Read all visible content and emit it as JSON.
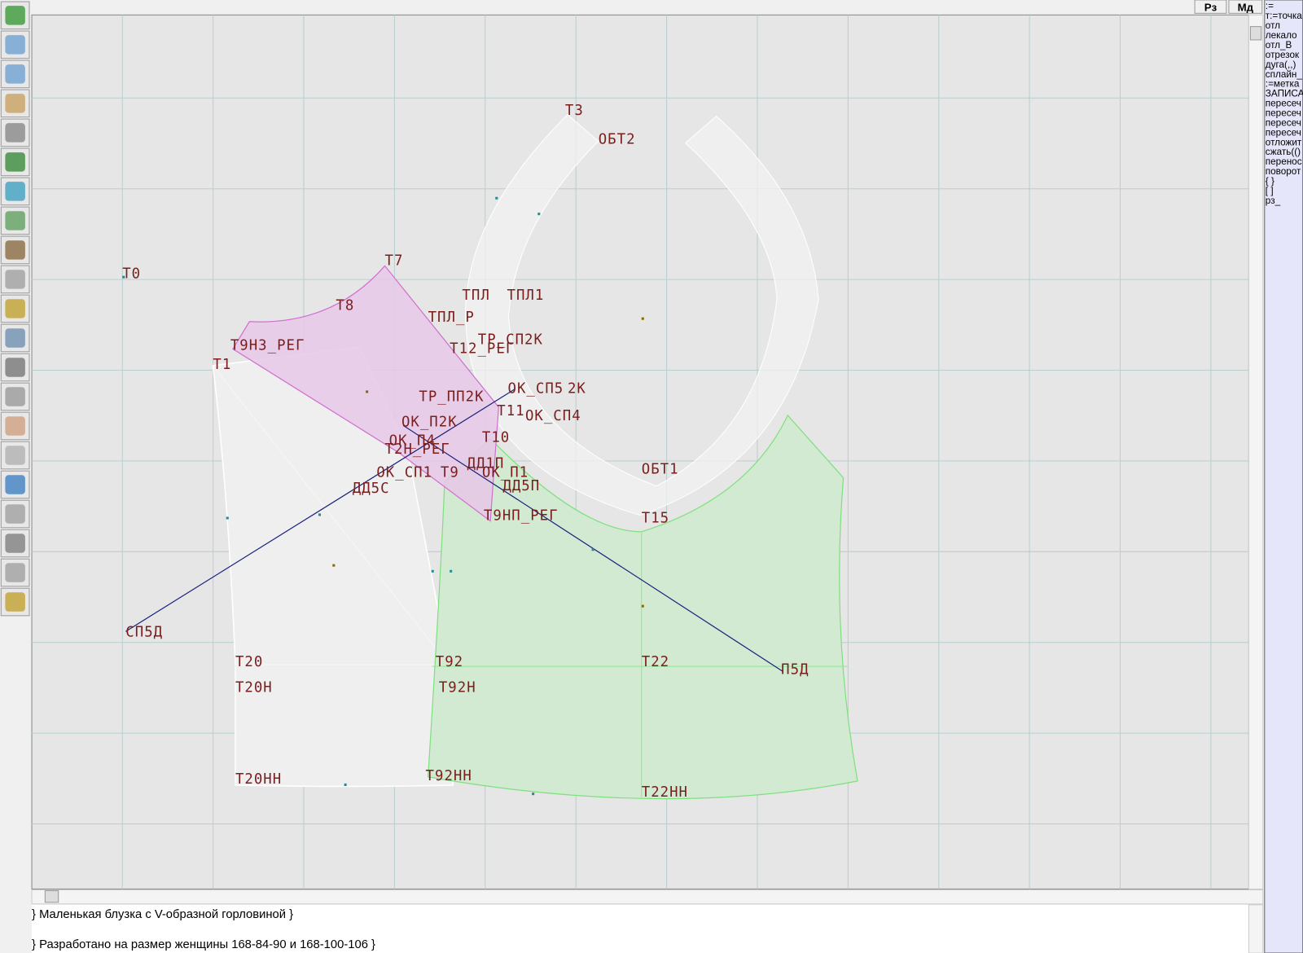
{
  "top_buttons": [
    "Рз",
    "Мд"
  ],
  "right_panel": {
    "lines": [
      ":=",
      "т:=точка",
      "отл",
      "лекало",
      "отл_В",
      "отрезок",
      "дуга(,,)",
      "сплайн_",
      ":=метка",
      "ЗАПИСА",
      "пересеч",
      "пересеч",
      "пересеч",
      "пересеч",
      "отложит",
      "сжать(()",
      "перенос",
      "поворот",
      "{ }",
      "[ ]",
      "рз_"
    ]
  },
  "canvas": {
    "point_labels": [
      "Т3",
      "ОБТ2",
      "Т0",
      "Т7",
      "Т8",
      "ТПЛ",
      "ТПЛ1",
      "ТПЛ_Р",
      "Т9НЗ_РЕГ",
      "ТР_СП2К",
      "Т1",
      "Т12_РЕГ",
      "ТР_ПП2К",
      "ОК_СП5",
      "2К",
      "Т11",
      "ОК_СП4",
      "ОК_П2К",
      "Т10",
      "ОК_П4",
      "Т2Н_РЕГ",
      "ДД1П",
      "ОБТ1",
      "ОК_СП1",
      "Т9",
      "ОК_П1",
      "ДД5П",
      "ДД5С",
      "Т9НП_РЕГ",
      "Т15",
      "СП5Д",
      "Т20",
      "Т92",
      "Т22",
      "П5Д",
      "Т20Н",
      "Т92Н",
      "Т20НН",
      "Т92НН",
      "Т22НН"
    ]
  },
  "footer": {
    "lines": [
      "} Маленькая блузка с V-образной горловиной }",
      "} Разработано на размер женщины 168-84-90 и 168-100-106 }"
    ]
  }
}
